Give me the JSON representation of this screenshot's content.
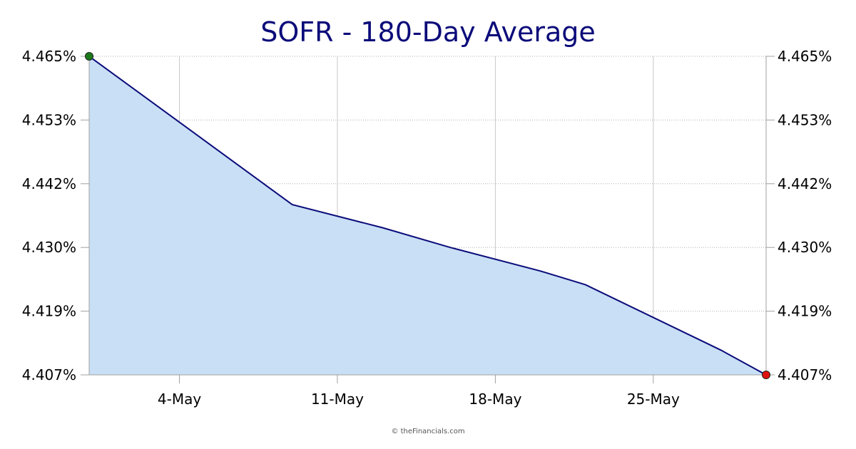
{
  "chart_data": {
    "type": "area",
    "title": "SOFR - 180-Day Average",
    "xlabel": "",
    "ylabel": "",
    "x_ticks": [
      "4-May",
      "11-May",
      "18-May",
      "25-May"
    ],
    "y_ticks": [
      "4.465%",
      "4.453%",
      "4.442%",
      "4.430%",
      "4.419%",
      "4.407%"
    ],
    "ylim": [
      4.407,
      4.465
    ],
    "x_range": [
      "2025-04-30",
      "2025-05-30"
    ],
    "series": [
      {
        "x": [
          "2025-04-30",
          "2025-05-07",
          "2025-05-09",
          "2025-05-13",
          "2025-05-16",
          "2025-05-20",
          "2025-05-22",
          "2025-05-28",
          "2025-05-30"
        ],
        "values": [
          4.465,
          4.444,
          4.438,
          4.4338,
          4.4302,
          4.4259,
          4.4234,
          4.4115,
          4.407
        ],
        "line_color": "#0b0b7a",
        "fill_color": "#c8dff5"
      }
    ],
    "markers": {
      "start_color": "#1a7a1a",
      "end_color": "#e01010"
    },
    "grid": true,
    "y_axis_sides": "both"
  },
  "credit": "© theFinancials.com"
}
